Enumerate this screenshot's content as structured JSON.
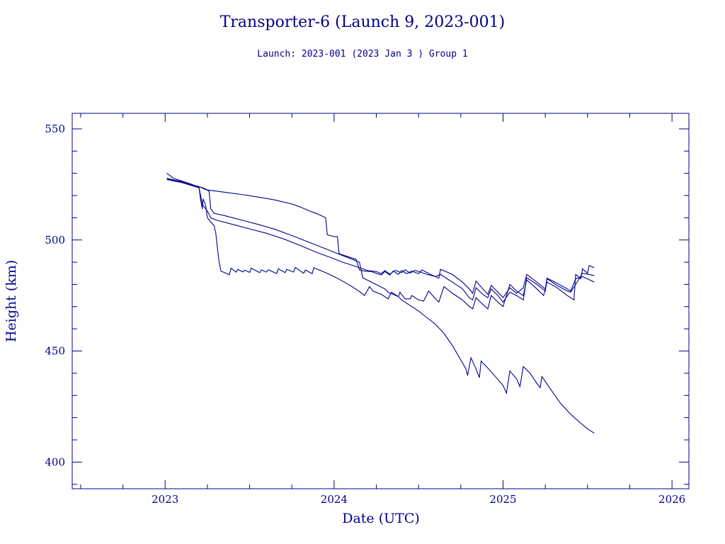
{
  "chart_data": {
    "type": "line",
    "title": "Transporter-6 (Launch 9, 2023-001)",
    "subtitle": "Launch: 2023-001  (2023 Jan  3 )  Group 1",
    "xlabel": "Date (UTC)",
    "ylabel": "Height (km)",
    "xlim": [
      2022.45,
      2026.1
    ],
    "ylim": [
      388,
      557
    ],
    "x_ticks": [
      2023,
      2024,
      2025,
      2026
    ],
    "y_ticks": [
      400,
      450,
      500,
      550
    ],
    "grid": false,
    "legend": "none",
    "series": [
      {
        "points": [
          [
            2023.01,
            530.0
          ],
          [
            2023.05,
            527.8
          ],
          [
            2023.1,
            526.5
          ],
          [
            2023.15,
            525.2
          ],
          [
            2023.2,
            523.8
          ],
          [
            2023.21,
            518.0
          ],
          [
            2023.22,
            514.0
          ],
          [
            2023.225,
            518.5
          ],
          [
            2023.24,
            515.5
          ],
          [
            2023.25,
            510.0
          ],
          [
            2023.27,
            508.0
          ],
          [
            2023.29,
            506.5
          ],
          [
            2023.3,
            503.0
          ],
          [
            2023.31,
            496.0
          ],
          [
            2023.32,
            490.0
          ],
          [
            2023.33,
            486.0
          ],
          [
            2023.36,
            485.0
          ],
          [
            2023.38,
            484.3
          ],
          [
            2023.39,
            487.3
          ],
          [
            2023.42,
            485.5
          ],
          [
            2023.43,
            486.8
          ],
          [
            2023.46,
            485.6
          ],
          [
            2023.47,
            486.4
          ],
          [
            2023.5,
            485.4
          ],
          [
            2023.51,
            487.3
          ],
          [
            2023.56,
            485.3
          ],
          [
            2023.57,
            486.5
          ],
          [
            2023.6,
            485.5
          ],
          [
            2023.61,
            486.6
          ],
          [
            2023.66,
            484.9
          ],
          [
            2023.67,
            487.0
          ],
          [
            2023.71,
            485.3
          ],
          [
            2023.72,
            486.8
          ],
          [
            2023.76,
            485.5
          ],
          [
            2023.77,
            487.6
          ],
          [
            2023.82,
            485.0
          ],
          [
            2023.83,
            486.5
          ],
          [
            2023.87,
            484.8
          ],
          [
            2023.88,
            487.5
          ],
          [
            2023.95,
            485.3
          ],
          [
            2024.0,
            483.5
          ],
          [
            2024.05,
            481.5
          ],
          [
            2024.1,
            479.3
          ],
          [
            2024.15,
            476.8
          ],
          [
            2024.18,
            475.0
          ],
          [
            2024.21,
            479.0
          ],
          [
            2024.23,
            477.0
          ],
          [
            2024.28,
            475.5
          ],
          [
            2024.32,
            473.5
          ],
          [
            2024.34,
            476.5
          ],
          [
            2024.38,
            474.5
          ],
          [
            2024.39,
            476.5
          ],
          [
            2024.42,
            473.5
          ],
          [
            2024.45,
            473.5
          ],
          [
            2024.46,
            475.0
          ],
          [
            2024.5,
            473.0
          ],
          [
            2024.53,
            472.5
          ],
          [
            2024.56,
            477.0
          ],
          [
            2024.6,
            473.5
          ],
          [
            2024.62,
            472.0
          ],
          [
            2024.65,
            479.0
          ],
          [
            2024.7,
            476.0
          ],
          [
            2024.76,
            473.0
          ],
          [
            2024.8,
            470.0
          ],
          [
            2024.82,
            469.0
          ],
          [
            2024.84,
            474.0
          ],
          [
            2024.88,
            471.0
          ],
          [
            2024.91,
            469.0
          ],
          [
            2024.93,
            475.0
          ],
          [
            2024.97,
            472.0
          ],
          [
            2025.0,
            470.0
          ],
          [
            2025.04,
            480.0
          ],
          [
            2025.08,
            477.0
          ],
          [
            2025.12,
            475.0
          ],
          [
            2025.14,
            482.0
          ],
          [
            2025.2,
            478.0
          ],
          [
            2025.24,
            475.0
          ],
          [
            2025.26,
            481.0
          ],
          [
            2025.32,
            478.5
          ],
          [
            2025.38,
            475.0
          ],
          [
            2025.42,
            473.0
          ],
          [
            2025.43,
            484.5
          ],
          [
            2025.46,
            482.5
          ],
          [
            2025.47,
            487.0
          ],
          [
            2025.5,
            485.0
          ],
          [
            2025.51,
            488.5
          ],
          [
            2025.54,
            487.5
          ]
        ]
      },
      {
        "points": [
          [
            2023.01,
            527.8
          ],
          [
            2023.1,
            526.2
          ],
          [
            2023.15,
            525.0
          ],
          [
            2023.2,
            524.0
          ],
          [
            2023.23,
            523.3
          ],
          [
            2023.25,
            522.5
          ],
          [
            2023.35,
            521.5
          ],
          [
            2023.45,
            520.5
          ],
          [
            2023.55,
            519.3
          ],
          [
            2023.65,
            518.0
          ],
          [
            2023.75,
            516.2
          ],
          [
            2023.8,
            514.8
          ],
          [
            2023.85,
            513.2
          ],
          [
            2023.9,
            511.8
          ],
          [
            2023.95,
            510.0
          ],
          [
            2023.96,
            502.3
          ],
          [
            2024.0,
            501.5
          ],
          [
            2024.02,
            501.5
          ],
          [
            2024.03,
            493.8
          ],
          [
            2024.1,
            492.0
          ],
          [
            2024.13,
            491.3
          ],
          [
            2024.15,
            486.5
          ],
          [
            2024.18,
            486.0
          ],
          [
            2024.22,
            485.8
          ],
          [
            2024.25,
            485.0
          ],
          [
            2024.28,
            484.2
          ],
          [
            2024.3,
            485.8
          ],
          [
            2024.33,
            484.2
          ],
          [
            2024.35,
            486.0
          ],
          [
            2024.38,
            484.5
          ],
          [
            2024.4,
            486.2
          ],
          [
            2024.43,
            484.8
          ],
          [
            2024.46,
            486.0
          ],
          [
            2024.5,
            484.8
          ],
          [
            2024.52,
            486.5
          ],
          [
            2024.57,
            484.5
          ],
          [
            2024.6,
            483.5
          ],
          [
            2024.62,
            482.8
          ],
          [
            2024.63,
            486.8
          ],
          [
            2024.7,
            484.5
          ],
          [
            2024.76,
            481.0
          ],
          [
            2024.8,
            478.0
          ],
          [
            2024.82,
            476.0
          ],
          [
            2024.84,
            481.5
          ],
          [
            2024.88,
            478.0
          ],
          [
            2024.91,
            475.5
          ],
          [
            2024.93,
            479.5
          ],
          [
            2024.97,
            476.5
          ],
          [
            2025.0,
            474.0
          ],
          [
            2025.04,
            478.5
          ],
          [
            2025.08,
            476.0
          ],
          [
            2025.12,
            478.5
          ],
          [
            2025.14,
            484.5
          ],
          [
            2025.2,
            481.0
          ],
          [
            2025.25,
            478.0
          ],
          [
            2025.26,
            482.8
          ],
          [
            2025.32,
            480.5
          ],
          [
            2025.38,
            478.0
          ],
          [
            2025.4,
            477.0
          ],
          [
            2025.43,
            482.5
          ],
          [
            2025.47,
            483.5
          ],
          [
            2025.54,
            481.0
          ]
        ]
      },
      {
        "points": [
          [
            2023.01,
            527.5
          ],
          [
            2023.1,
            526.0
          ],
          [
            2023.2,
            524.0
          ],
          [
            2023.26,
            522.0
          ],
          [
            2023.27,
            514.0
          ],
          [
            2023.29,
            512.0
          ],
          [
            2023.35,
            511.0
          ],
          [
            2023.45,
            509.0
          ],
          [
            2023.55,
            507.0
          ],
          [
            2023.65,
            504.8
          ],
          [
            2023.75,
            502.0
          ],
          [
            2023.85,
            499.0
          ],
          [
            2023.95,
            496.0
          ],
          [
            2024.05,
            493.0
          ],
          [
            2024.1,
            491.5
          ],
          [
            2024.15,
            490.0
          ],
          [
            2024.17,
            483.0
          ],
          [
            2024.22,
            481.0
          ],
          [
            2024.3,
            478.0
          ],
          [
            2024.32,
            476.5
          ],
          [
            2024.35,
            475.5
          ],
          [
            2024.38,
            474.5
          ],
          [
            2024.4,
            473.0
          ],
          [
            2024.45,
            470.5
          ],
          [
            2024.5,
            468.0
          ],
          [
            2024.55,
            465.0
          ],
          [
            2024.6,
            462.0
          ],
          [
            2024.65,
            458.0
          ],
          [
            2024.7,
            452.5
          ],
          [
            2024.75,
            446.0
          ],
          [
            2024.78,
            442.0
          ],
          [
            2024.79,
            439.0
          ],
          [
            2024.81,
            447.0
          ],
          [
            2024.84,
            442.0
          ],
          [
            2024.86,
            438.0
          ],
          [
            2024.87,
            445.5
          ],
          [
            2024.92,
            441.5
          ],
          [
            2024.96,
            438.0
          ],
          [
            2025.0,
            434.5
          ],
          [
            2025.02,
            431.0
          ],
          [
            2025.04,
            441.0
          ],
          [
            2025.08,
            437.5
          ],
          [
            2025.1,
            434.0
          ],
          [
            2025.12,
            443.0
          ],
          [
            2025.16,
            440.0
          ],
          [
            2025.2,
            435.5
          ],
          [
            2025.22,
            433.5
          ],
          [
            2025.23,
            438.5
          ],
          [
            2025.28,
            433.0
          ],
          [
            2025.34,
            426.5
          ],
          [
            2025.4,
            421.5
          ],
          [
            2025.46,
            417.5
          ],
          [
            2025.5,
            415.0
          ],
          [
            2025.54,
            413.0
          ]
        ]
      },
      {
        "points": [
          [
            2023.01,
            527.2
          ],
          [
            2023.1,
            525.8
          ],
          [
            2023.2,
            523.5
          ],
          [
            2023.21,
            520.0
          ],
          [
            2023.22,
            516.0
          ],
          [
            2023.25,
            513.0
          ],
          [
            2023.27,
            510.0
          ],
          [
            2023.3,
            509.0
          ],
          [
            2023.4,
            507.0
          ],
          [
            2023.5,
            505.0
          ],
          [
            2023.6,
            503.0
          ],
          [
            2023.7,
            500.5
          ],
          [
            2023.8,
            497.5
          ],
          [
            2023.9,
            494.3
          ],
          [
            2024.0,
            491.5
          ],
          [
            2024.05,
            490.0
          ],
          [
            2024.1,
            488.8
          ],
          [
            2024.15,
            487.5
          ],
          [
            2024.2,
            486.2
          ],
          [
            2024.25,
            485.8
          ],
          [
            2024.28,
            484.8
          ],
          [
            2024.3,
            486.2
          ],
          [
            2024.33,
            484.6
          ],
          [
            2024.36,
            486.3
          ],
          [
            2024.4,
            485.3
          ],
          [
            2024.42,
            486.6
          ],
          [
            2024.45,
            485.1
          ],
          [
            2024.48,
            486.3
          ],
          [
            2024.52,
            485.3
          ],
          [
            2024.55,
            484.5
          ],
          [
            2024.6,
            483.5
          ],
          [
            2024.63,
            484.5
          ],
          [
            2024.7,
            481.0
          ],
          [
            2024.76,
            478.0
          ],
          [
            2024.8,
            474.0
          ],
          [
            2024.82,
            473.0
          ],
          [
            2024.84,
            478.5
          ],
          [
            2024.88,
            475.5
          ],
          [
            2024.91,
            474.0
          ],
          [
            2024.93,
            478.0
          ],
          [
            2024.97,
            475.0
          ],
          [
            2025.0,
            472.0
          ],
          [
            2025.04,
            476.5
          ],
          [
            2025.08,
            475.0
          ],
          [
            2025.12,
            473.0
          ],
          [
            2025.14,
            483.0
          ],
          [
            2025.2,
            480.0
          ],
          [
            2025.25,
            477.0
          ],
          [
            2025.26,
            482.5
          ],
          [
            2025.32,
            479.5
          ],
          [
            2025.38,
            477.0
          ],
          [
            2025.4,
            476.5
          ],
          [
            2025.43,
            480.0
          ],
          [
            2025.47,
            485.0
          ],
          [
            2025.54,
            484.0
          ]
        ]
      }
    ],
    "color": "#00008b"
  }
}
